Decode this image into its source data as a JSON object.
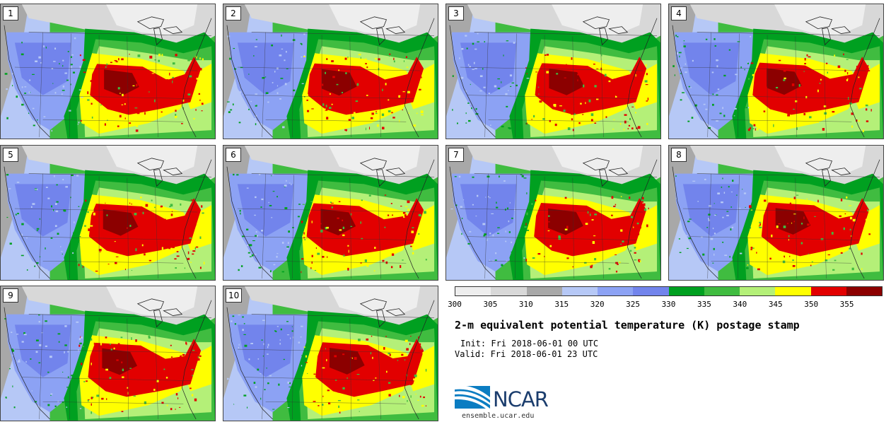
{
  "panels": [
    {
      "label": "1"
    },
    {
      "label": "2"
    },
    {
      "label": "3"
    },
    {
      "label": "4"
    },
    {
      "label": "5"
    },
    {
      "label": "6"
    },
    {
      "label": "7"
    },
    {
      "label": "8"
    },
    {
      "label": "9"
    },
    {
      "label": "10"
    }
  ],
  "colorbar": {
    "colors": [
      "#eeeeee",
      "#d8d8d8",
      "#a8a8a8",
      "#b6c8f6",
      "#8ca2f4",
      "#7284ec",
      "#00a020",
      "#40bc40",
      "#b4f078",
      "#ffff00",
      "#e20000",
      "#8c0000"
    ],
    "labels": [
      "300",
      "305",
      "310",
      "315",
      "320",
      "325",
      "330",
      "335",
      "340",
      "345",
      "350",
      "355"
    ]
  },
  "title": "2-m equivalent potential temperature (K) postage stamp",
  "init_text": "Init: Fri 2018-06-01 00 UTC",
  "valid_text": "Valid: Fri 2018-06-01 23 UTC",
  "logo": {
    "text": "NCAR",
    "url_text": "ensemble.ucar.edu"
  }
}
